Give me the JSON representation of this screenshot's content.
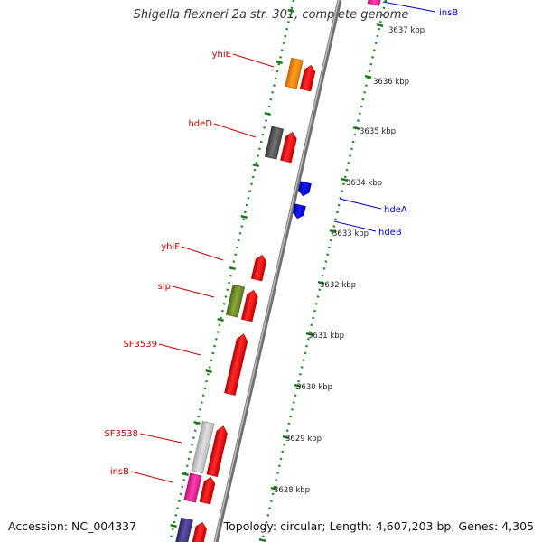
{
  "title": "Shigella flexneri 2a str. 301, complete genome",
  "footer": {
    "accession": "Accession: NC_004337",
    "topology": "Topology: circular; Length: 4,607,203 bp; Genes: 4,305"
  },
  "ticks": [
    "3637 kbp",
    "3636 kbp",
    "3635 kbp",
    "3634 kbp",
    "3633 kbp",
    "3632 kbp",
    "3631 kbp",
    "3630 kbp",
    "3629 kbp",
    "3628 kbp"
  ],
  "labels": {
    "left": [
      "yhiE",
      "hdeD",
      "yhiF",
      "slp",
      "SF3539",
      "SF3538",
      "insB"
    ],
    "right": [
      "insB",
      "hdeA",
      "hdeB"
    ]
  },
  "colors": {
    "red_gene": "#ff0000",
    "blue_gene": "#0000ff",
    "orange_gene": "#ff8c00",
    "gray_gene": "#555555",
    "olive_gene": "#6b8e23",
    "lightgray_gene": "#c8c8c8",
    "pink_gene": "#ff1493",
    "purple_gene": "#483d8b",
    "label_red": "#cc0000",
    "label_blue": "#0000cc",
    "backbone": "#808080",
    "dotted_track": "#228b22"
  }
}
